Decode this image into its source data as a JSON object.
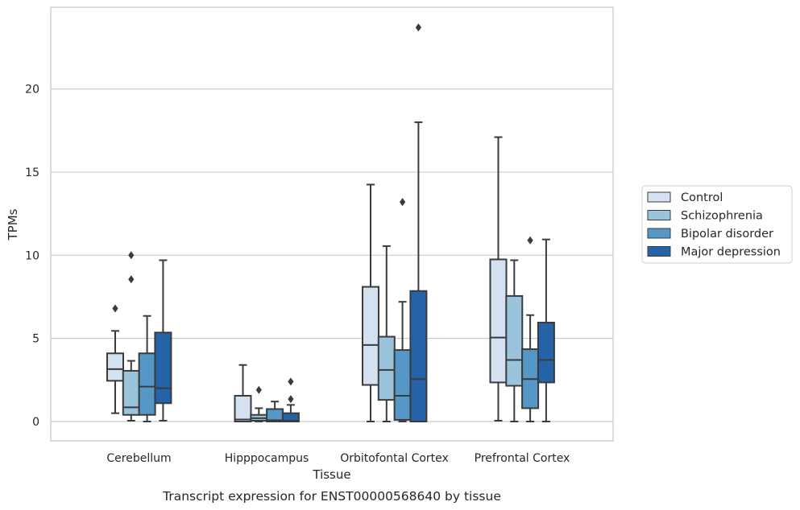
{
  "chart_data": {
    "type": "box",
    "title": "",
    "caption": "Transcript expression for ENST00000568640 by tissue",
    "xlabel": "Tissue",
    "ylabel": "TPMs",
    "categories": [
      "Cerebellum",
      "Hipppocampus",
      "Orbitofontal Cortex",
      "Prefrontal Cortex"
    ],
    "ylim": [
      -1.15,
      25.0
    ],
    "yticks": [
      0,
      5,
      10,
      15,
      20
    ],
    "grid": "horizontal",
    "legend_position": "right",
    "series": [
      {
        "name": "Control",
        "color": "#d3e1f0",
        "boxes": [
          {
            "whisker_low": 0.5,
            "q1": 2.45,
            "median": 3.15,
            "q3": 4.1,
            "whisker_high": 5.45,
            "outliers": [
              6.8
            ]
          },
          {
            "whisker_low": 0.0,
            "q1": 0.0,
            "median": 0.12,
            "q3": 1.55,
            "whisker_high": 3.4,
            "outliers": []
          },
          {
            "whisker_low": 0.0,
            "q1": 2.2,
            "median": 4.6,
            "q3": 8.1,
            "whisker_high": 14.25,
            "outliers": []
          },
          {
            "whisker_low": 0.05,
            "q1": 2.35,
            "median": 5.05,
            "q3": 9.75,
            "whisker_high": 17.1,
            "outliers": []
          }
        ]
      },
      {
        "name": "Schizophrenia",
        "color": "#9ac3dc",
        "boxes": [
          {
            "whisker_low": 0.05,
            "q1": 0.4,
            "median": 0.85,
            "q3": 3.05,
            "whisker_high": 3.65,
            "outliers": [
              8.55,
              10.0
            ]
          },
          {
            "whisker_low": 0.0,
            "q1": 0.05,
            "median": 0.2,
            "q3": 0.4,
            "whisker_high": 0.8,
            "outliers": [
              1.9
            ]
          },
          {
            "whisker_low": 0.0,
            "q1": 1.3,
            "median": 3.1,
            "q3": 5.1,
            "whisker_high": 10.55,
            "outliers": []
          },
          {
            "whisker_low": 0.0,
            "q1": 2.15,
            "median": 3.7,
            "q3": 7.55,
            "whisker_high": 9.7,
            "outliers": []
          }
        ]
      },
      {
        "name": "Bipolar disorder",
        "color": "#5597c7",
        "boxes": [
          {
            "whisker_low": 0.0,
            "q1": 0.4,
            "median": 2.1,
            "q3": 4.1,
            "whisker_high": 6.35,
            "outliers": []
          },
          {
            "whisker_low": 0.0,
            "q1": 0.0,
            "median": 0.08,
            "q3": 0.75,
            "whisker_high": 1.2,
            "outliers": []
          },
          {
            "whisker_low": 0.0,
            "q1": 0.1,
            "median": 1.55,
            "q3": 4.3,
            "whisker_high": 7.2,
            "outliers": [
              13.2
            ]
          },
          {
            "whisker_low": 0.0,
            "q1": 0.8,
            "median": 2.55,
            "q3": 4.35,
            "whisker_high": 6.4,
            "outliers": [
              10.9
            ]
          }
        ]
      },
      {
        "name": "Major depression",
        "color": "#2463a8",
        "boxes": [
          {
            "whisker_low": 0.05,
            "q1": 1.1,
            "median": 2.0,
            "q3": 5.35,
            "whisker_high": 9.7,
            "outliers": []
          },
          {
            "whisker_low": 0.0,
            "q1": 0.0,
            "median": 0.05,
            "q3": 0.5,
            "whisker_high": 1.0,
            "outliers": [
              1.35,
              2.4
            ]
          },
          {
            "whisker_low": 0.0,
            "q1": 0.0,
            "median": 2.55,
            "q3": 7.85,
            "whisker_high": 18.0,
            "outliers": [
              23.7
            ]
          },
          {
            "whisker_low": 0.0,
            "q1": 2.35,
            "median": 3.7,
            "q3": 5.95,
            "whisker_high": 10.95,
            "outliers": []
          }
        ]
      }
    ]
  }
}
